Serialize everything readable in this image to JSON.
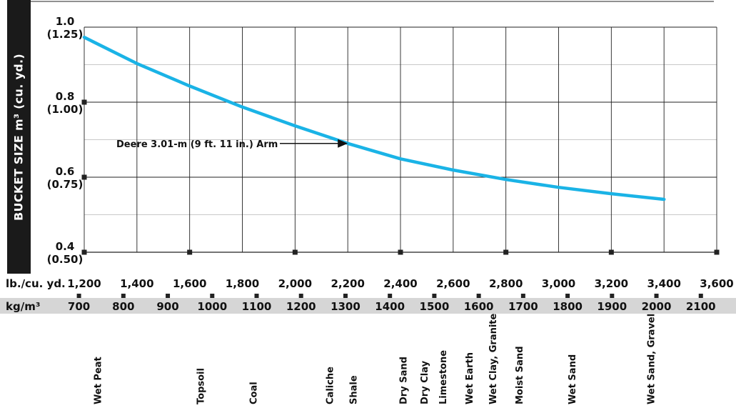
{
  "chart_data": {
    "type": "line",
    "ylabel": "BUCKET SIZE m³ (cu. yd.)",
    "y_ticks": [
      {
        "value": 1.0,
        "label": "1.0",
        "sub": "(1.25)"
      },
      {
        "value": 0.8,
        "label": "0.8",
        "sub": "(1.00)"
      },
      {
        "value": 0.6,
        "label": "0.6",
        "sub": "(0.75)"
      },
      {
        "value": 0.4,
        "label": "0.4",
        "sub": "(0.50)"
      }
    ],
    "ylim": [
      0.4,
      1.0
    ],
    "x_lb_label": "lb./cu. yd.",
    "x_lb_ticks": [
      "1,200",
      "1,400",
      "1,600",
      "1,800",
      "2,000",
      "2,200",
      "2,400",
      "2,600",
      "2,800",
      "3,000",
      "3,200",
      "3,400",
      "3,600"
    ],
    "x_lb_values": [
      1200,
      1400,
      1600,
      1800,
      2000,
      2200,
      2400,
      2600,
      2800,
      3000,
      3200,
      3400,
      3600
    ],
    "xlim_lb": [
      1200,
      3600
    ],
    "x_kg_label": "kg/m³",
    "x_kg_ticks": [
      "700",
      "800",
      "900",
      "1000",
      "1100",
      "1200",
      "1300",
      "1400",
      "1500",
      "1600",
      "1700",
      "1800",
      "1900",
      "2000",
      "2100"
    ],
    "x_kg_values": [
      700,
      800,
      900,
      1000,
      1100,
      1200,
      1300,
      1400,
      1500,
      1600,
      1700,
      1800,
      1900,
      2000,
      2100
    ],
    "series": [
      {
        "name": "Deere 3.01-m (9 ft. 11 in.) Arm",
        "color": "#1ab3e6",
        "x": [
          1200,
          1400,
          1600,
          1800,
          2000,
          2200,
          2400,
          2600,
          2800,
          3000,
          3200,
          3400
        ],
        "y": [
          0.973,
          0.903,
          0.843,
          0.787,
          0.737,
          0.69,
          0.649,
          0.619,
          0.594,
          0.573,
          0.556,
          0.541
        ]
      }
    ],
    "annotation": {
      "text": "Deere 3.01-m (9 ft. 11 in.) Arm",
      "arrow_to_x": 2200
    },
    "materials": [
      {
        "name": "Wet Peat",
        "lb": 1250
      },
      {
        "name": "Topsoil",
        "lb": 1640
      },
      {
        "name": "Coal",
        "lb": 1840
      },
      {
        "name": "Caliche",
        "lb": 2130
      },
      {
        "name": "Shale",
        "lb": 2220
      },
      {
        "name": "Dry Sand",
        "lb": 2410
      },
      {
        "name": "Dry Clay",
        "lb": 2490
      },
      {
        "name": "Limestone",
        "lb": 2560
      },
      {
        "name": "Wet Earth",
        "lb": 2660
      },
      {
        "name": "Wet Clay, Granite",
        "lb": 2750
      },
      {
        "name": "Moist Sand",
        "lb": 2850
      },
      {
        "name": "Wet Sand",
        "lb": 3050
      },
      {
        "name": "Wet Sand, Gravel",
        "lb": 3350
      }
    ],
    "grid": true
  }
}
